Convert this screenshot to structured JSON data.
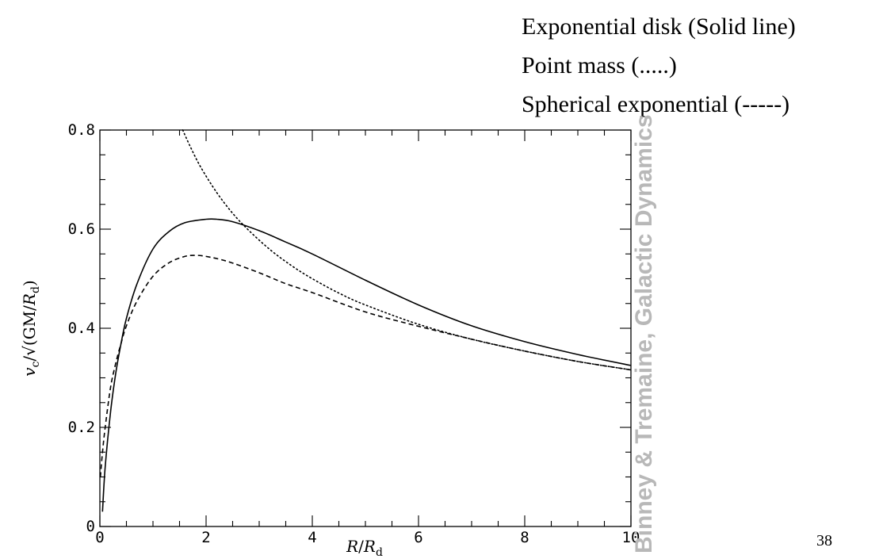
{
  "legend": [
    "Exponential disk (Solid line)",
    "Point mass (.....)",
    "Spherical exponential (-----)"
  ],
  "watermark": "Binney & Tremaine, Galactic Dynamics",
  "page_number": "38",
  "chart_data": {
    "type": "line",
    "title": "",
    "xlabel": "R/R_d",
    "ylabel": "v_c/√(GM/R_d)",
    "xlim": [
      0,
      10
    ],
    "ylim": [
      0,
      0.8
    ],
    "x_ticks": [
      0,
      2,
      4,
      6,
      8,
      10
    ],
    "y_ticks": [
      0,
      0.2,
      0.4,
      0.6,
      0.8
    ],
    "x_tick_labels": [
      "0",
      "2",
      "4",
      "6",
      "8",
      "10"
    ],
    "y_tick_labels": [
      "0",
      "0.2",
      "0.4",
      "0.6",
      "0.8"
    ],
    "grid": false,
    "series": [
      {
        "name": "Exponential disk (Solid line)",
        "style": "solid",
        "x": [
          0.05,
          0.1,
          0.2,
          0.3,
          0.4,
          0.5,
          0.7,
          1.0,
          1.3,
          1.6,
          2.0,
          2.2,
          2.5,
          3.0,
          3.5,
          4.0,
          5.0,
          6.0,
          7.0,
          8.0,
          9.0,
          10.0
        ],
        "values": [
          0.03,
          0.12,
          0.23,
          0.31,
          0.37,
          0.42,
          0.49,
          0.56,
          0.595,
          0.613,
          0.62,
          0.62,
          0.615,
          0.597,
          0.574,
          0.55,
          0.497,
          0.447,
          0.405,
          0.373,
          0.347,
          0.325
        ]
      },
      {
        "name": "Point mass (.....)",
        "style": "dotted",
        "x": [
          1.56,
          1.7,
          1.9,
          2.2,
          2.5,
          2.8,
          3.2,
          3.6,
          4.0,
          4.5,
          5.0,
          6.0,
          7.0,
          8.0,
          9.0,
          10.0
        ],
        "values": [
          0.8,
          0.767,
          0.725,
          0.674,
          0.632,
          0.598,
          0.559,
          0.527,
          0.5,
          0.471,
          0.447,
          0.408,
          0.378,
          0.354,
          0.333,
          0.316
        ]
      },
      {
        "name": "Spherical exponential (-----)",
        "style": "dashed",
        "x": [
          0.01,
          0.05,
          0.1,
          0.2,
          0.3,
          0.4,
          0.5,
          0.7,
          1.0,
          1.3,
          1.6,
          1.8,
          2.0,
          2.4,
          3.0,
          3.5,
          4.0,
          5.0,
          6.0,
          7.0,
          8.0,
          9.0,
          10.0
        ],
        "values": [
          0.1,
          0.15,
          0.2,
          0.28,
          0.33,
          0.37,
          0.405,
          0.455,
          0.505,
          0.532,
          0.545,
          0.547,
          0.545,
          0.535,
          0.512,
          0.49,
          0.472,
          0.433,
          0.404,
          0.378,
          0.354,
          0.333,
          0.316
        ]
      }
    ]
  }
}
